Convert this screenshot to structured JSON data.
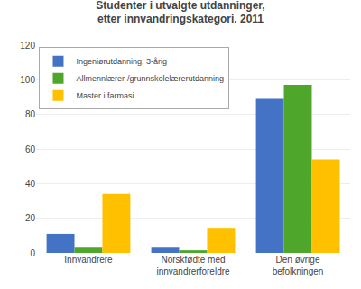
{
  "chart_data": {
    "type": "bar",
    "title": "Studenter i utvalgte utdanninger, etter innvandringskategori. 2011",
    "categories": [
      "Innvandrere",
      "Norskfødte med\ninnvandrerforeldre",
      "Den øvrige\nbefolkningen"
    ],
    "series": [
      {
        "name": "Ingeniørutdanning, 3-årig",
        "color": "#4472c4",
        "values": [
          11,
          3,
          89
        ]
      },
      {
        "name": "Allmennlærer-/grunnskolelærerutdanning",
        "color": "#4ea72a",
        "values": [
          3,
          1.5,
          97
        ]
      },
      {
        "name": "Master i farmasi",
        "color": "#ffc000",
        "values": [
          34,
          14,
          54
        ]
      }
    ],
    "ylim": [
      0,
      120
    ],
    "yticks": [
      0,
      20,
      40,
      60,
      80,
      100,
      120
    ],
    "grid": true,
    "legend": "upper left"
  }
}
